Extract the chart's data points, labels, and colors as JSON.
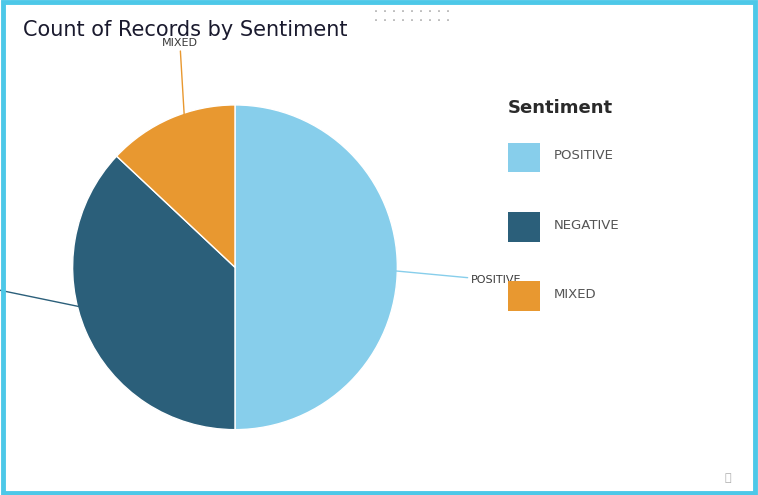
{
  "title": "Count of Records by Sentiment",
  "labels": [
    "POSITIVE",
    "NEGATIVE",
    "MIXED"
  ],
  "values": [
    50,
    37,
    13
  ],
  "colors": [
    "#87CEEB",
    "#2B5F7A",
    "#E89830"
  ],
  "background_color": "#FFFFFF",
  "border_color": "#4DC8E8",
  "title_fontsize": 15,
  "legend_title": "Sentiment",
  "legend_labels": [
    "POSITIVE",
    "NEGATIVE",
    "MIXED"
  ],
  "legend_colors": [
    "#87CEEB",
    "#2B5F7A",
    "#E89830"
  ],
  "line_color_positive": "#87CEEB",
  "line_color_negative": "#2B5F7A",
  "line_color_mixed": "#E89830",
  "startangle": 90,
  "figsize": [
    7.58,
    4.95
  ],
  "dpi": 100
}
